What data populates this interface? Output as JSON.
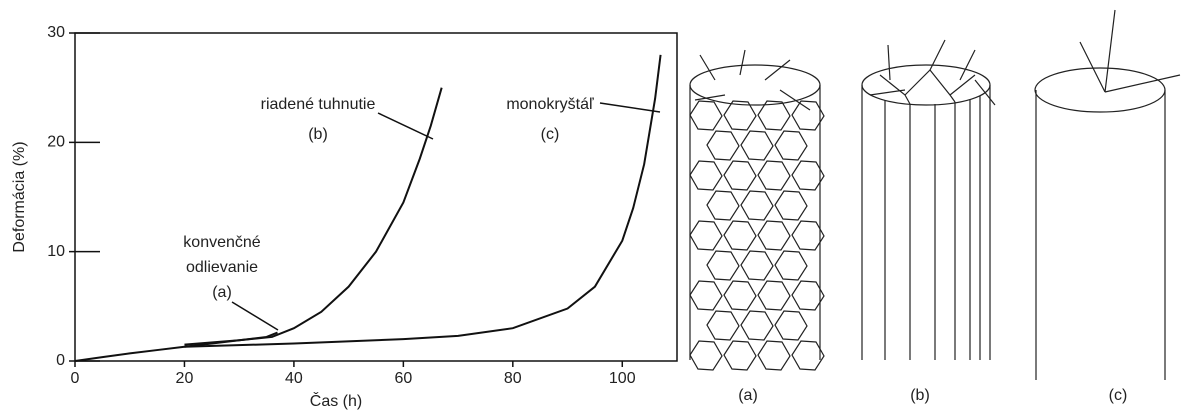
{
  "chart_data": {
    "type": "line",
    "xlabel": "Čas (h)",
    "ylabel": "Deformácia (%)",
    "xlim": [
      0,
      110
    ],
    "ylim": [
      0,
      30
    ],
    "xticks": [
      0,
      20,
      40,
      60,
      80,
      100
    ],
    "yticks": [
      0,
      10,
      20,
      30
    ],
    "color": "#111111",
    "grid": false,
    "series": [
      {
        "x": [
          0,
          5,
          10,
          15,
          20,
          25,
          30,
          35,
          37
        ],
        "values": [
          0,
          0.35,
          0.7,
          1.0,
          1.3,
          1.6,
          1.9,
          2.2,
          2.6
        ]
      },
      {
        "x": [
          20,
          30,
          36,
          40,
          45,
          50,
          55,
          60,
          63,
          65,
          67
        ],
        "values": [
          1.5,
          1.9,
          2.2,
          3,
          4.5,
          6.8,
          10,
          14.5,
          18.5,
          21.5,
          25
        ]
      },
      {
        "x": [
          20,
          40,
          60,
          70,
          80,
          90,
          95,
          100,
          102,
          104,
          106,
          107
        ],
        "values": [
          1.3,
          1.6,
          2,
          2.3,
          3,
          4.8,
          6.8,
          11,
          14,
          18,
          24,
          28
        ]
      }
    ],
    "annotations": [
      {
        "lines": [
          "konvenčné",
          "odlievanie",
          "(a)"
        ]
      },
      {
        "lines": [
          "riadené tuhnutie",
          "(b)"
        ]
      },
      {
        "lines": [
          "monokryštáľ",
          "(c)"
        ]
      }
    ]
  },
  "diagram_labels": [
    "(a)",
    "(b)",
    "(c)"
  ]
}
